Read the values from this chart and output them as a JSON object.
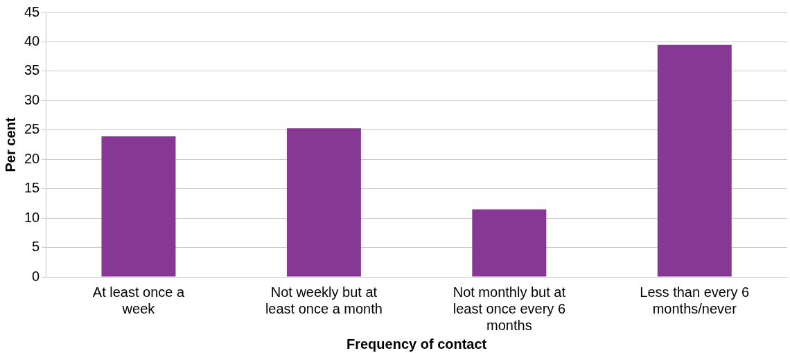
{
  "chart_data": {
    "type": "bar",
    "xlabel": "Frequency of contact",
    "ylabel": "Per cent",
    "categories": [
      "At least once a week",
      "Not weekly but at least once a month",
      "Not monthly but at least once every 6 months",
      "Less than every 6 months/never"
    ],
    "values": [
      23.9,
      25.3,
      11.5,
      39.5
    ],
    "color": "#863894",
    "ylim": [
      0,
      45
    ],
    "yticks": [
      0,
      5,
      10,
      15,
      20,
      25,
      30,
      35,
      40,
      45
    ],
    "grid": "y",
    "legend": false
  }
}
